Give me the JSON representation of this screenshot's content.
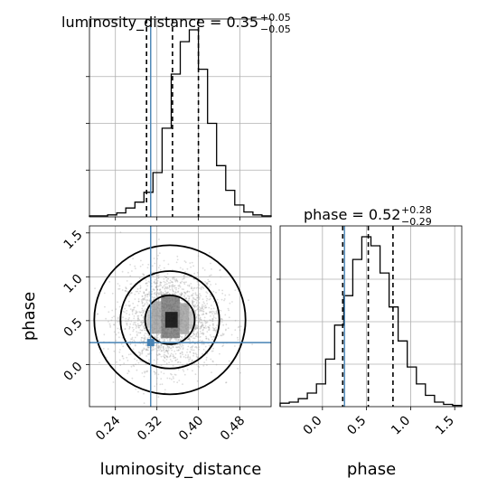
{
  "chart_data": {
    "type": "corner",
    "truth_color": "#4682b4",
    "parameters": [
      {
        "name": "luminosity_distance",
        "title_base": "luminosity_distance = 0.35",
        "title_plus": "+0.05",
        "title_minus": "−0.05",
        "range": [
          0.19,
          0.54
        ],
        "ticks": [
          0.24,
          0.32,
          0.4,
          0.48
        ],
        "tick_labels": [
          "0.24",
          "0.32",
          "0.40",
          "0.48"
        ],
        "quantiles": [
          0.3,
          0.35,
          0.4
        ],
        "truth": 0.308,
        "hist_edges_start": 0.19,
        "hist_bin_width": 0.0175,
        "hist_counts": [
          1,
          1,
          2,
          4,
          9,
          15,
          25,
          45,
          90,
          145,
          178,
          190,
          150,
          95,
          52,
          27,
          12,
          5,
          2,
          1
        ]
      },
      {
        "name": "phase",
        "title_base": "phase = 0.52",
        "title_plus": "+0.28",
        "title_minus": "−0.29",
        "range": [
          -0.48,
          1.58
        ],
        "ticks": [
          0.0,
          0.5,
          1.0,
          1.5
        ],
        "tick_labels": [
          "0.0",
          "0.5",
          "1.0",
          "1.5"
        ],
        "quantiles": [
          0.23,
          0.52,
          0.8
        ],
        "truth": 0.25,
        "hist_edges_start": -0.48,
        "hist_bin_width": 0.103,
        "hist_counts": [
          3,
          4,
          7,
          12,
          20,
          42,
          72,
          98,
          130,
          150,
          142,
          118,
          88,
          58,
          35,
          20,
          10,
          4,
          2,
          1
        ]
      }
    ],
    "scatter_2d": {
      "x_param": "luminosity_distance",
      "y_param": "phase",
      "center": [
        0.345,
        0.51
      ],
      "spread": [
        0.048,
        0.28
      ],
      "contour_levels": [
        0.39,
        0.86,
        0.99
      ],
      "density_cells": [
        {
          "x0": 0.31,
          "x1": 0.328,
          "y0": 0.35,
          "y1": 0.72,
          "level": 0.35
        },
        {
          "x0": 0.328,
          "x1": 0.346,
          "y0": 0.3,
          "y1": 0.8,
          "level": 0.55
        },
        {
          "x0": 0.346,
          "x1": 0.364,
          "y0": 0.3,
          "y1": 0.78,
          "level": 0.55
        },
        {
          "x0": 0.364,
          "x1": 0.382,
          "y0": 0.35,
          "y1": 0.7,
          "level": 0.35
        },
        {
          "x0": 0.3,
          "x1": 0.31,
          "y0": 0.42,
          "y1": 0.62,
          "level": 0.18
        },
        {
          "x0": 0.382,
          "x1": 0.395,
          "y0": 0.4,
          "y1": 0.62,
          "level": 0.18
        },
        {
          "x0": 0.336,
          "x1": 0.36,
          "y0": 0.42,
          "y1": 0.6,
          "level": 1.0
        }
      ]
    }
  }
}
